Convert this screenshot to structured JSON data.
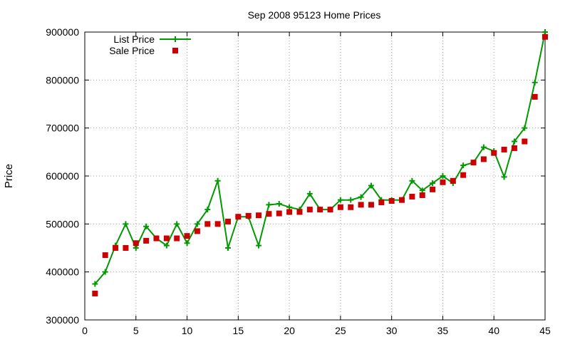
{
  "chart_data": {
    "type": "line",
    "title": "Sep 2008 95123 Home Prices",
    "xlabel": "",
    "ylabel": "Price",
    "xlim": [
      0,
      45
    ],
    "ylim": [
      300000,
      900000
    ],
    "xticks": [
      0,
      5,
      10,
      15,
      20,
      25,
      30,
      35,
      40,
      45
    ],
    "yticks": [
      300000,
      400000,
      500000,
      600000,
      700000,
      800000,
      900000
    ],
    "xtick_labels": [
      "0",
      "5",
      "10",
      "15",
      "20",
      "25",
      "30",
      "35",
      "40",
      "45"
    ],
    "ytick_labels": [
      "300000",
      "400000",
      "500000",
      "600000",
      "700000",
      "800000",
      "900000"
    ],
    "grid": true,
    "legend_position": "top-left",
    "x": [
      1,
      2,
      3,
      4,
      5,
      6,
      7,
      8,
      9,
      10,
      11,
      12,
      13,
      14,
      15,
      16,
      17,
      18,
      19,
      20,
      21,
      22,
      23,
      24,
      25,
      26,
      27,
      28,
      29,
      30,
      31,
      32,
      33,
      34,
      35,
      36,
      37,
      38,
      39,
      40,
      41,
      42,
      43,
      44,
      45
    ],
    "series": [
      {
        "name": "List Price",
        "style": "line-plus",
        "color": "#009900",
        "values": [
          375000,
          400000,
          455000,
          500000,
          450000,
          495000,
          470000,
          455000,
          500000,
          460000,
          500000,
          530000,
          590000,
          450000,
          515000,
          515000,
          455000,
          540000,
          542000,
          535000,
          530000,
          563000,
          530000,
          530000,
          550000,
          550000,
          556000,
          580000,
          550000,
          550000,
          550000,
          590000,
          570000,
          585000,
          600000,
          585000,
          622000,
          628000,
          660000,
          652000,
          598000,
          672000,
          700000,
          795000,
          900000
        ]
      },
      {
        "name": "Sale Price",
        "style": "square-marker",
        "color": "#cc0000",
        "values": [
          355000,
          435000,
          450000,
          450000,
          460000,
          465000,
          470000,
          470000,
          470000,
          475000,
          485000,
          500000,
          500000,
          505000,
          515000,
          517000,
          518000,
          521000,
          522000,
          525000,
          525000,
          530000,
          530000,
          530000,
          535000,
          535000,
          540000,
          540000,
          545000,
          548000,
          550000,
          557000,
          560000,
          572000,
          587000,
          590000,
          602000,
          628000,
          635000,
          648000,
          655000,
          658000,
          672000,
          765000,
          890000
        ]
      }
    ]
  }
}
